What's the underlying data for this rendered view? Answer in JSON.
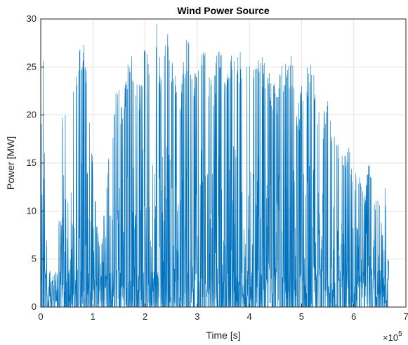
{
  "chart_data": {
    "type": "line",
    "title": "Wind Power Source",
    "xlabel": "Time [s]",
    "ylabel": "Power [MW]",
    "xlim": [
      0,
      700000
    ],
    "ylim": [
      0,
      30
    ],
    "x_ticks": [
      0,
      100000,
      200000,
      300000,
      400000,
      500000,
      600000,
      700000
    ],
    "x_tick_labels": [
      "0",
      "1",
      "2",
      "3",
      "4",
      "5",
      "6",
      "7"
    ],
    "x_multiplier": "×10",
    "x_multiplier_exponent": "5",
    "y_ticks": [
      0,
      5,
      10,
      15,
      20,
      25,
      30
    ],
    "y_tick_labels": [
      "0",
      "5",
      "10",
      "15",
      "20",
      "25",
      "30"
    ],
    "grid": true,
    "line_color": "#0072BD",
    "series": [
      {
        "x_start": 0,
        "x_end": 667000,
        "peaks": [
          {
            "x": 1000,
            "y": 19
          },
          {
            "x": 3000,
            "y": 26
          },
          {
            "x": 5000,
            "y": 28
          },
          {
            "x": 8000,
            "y": 16
          },
          {
            "x": 12000,
            "y": 5
          },
          {
            "x": 20000,
            "y": 3
          },
          {
            "x": 30000,
            "y": 2
          },
          {
            "x": 45000,
            "y": 26
          },
          {
            "x": 55000,
            "y": 6
          },
          {
            "x": 65000,
            "y": 29.5
          },
          {
            "x": 72000,
            "y": 25
          },
          {
            "x": 78000,
            "y": 29
          },
          {
            "x": 82000,
            "y": 28.7
          },
          {
            "x": 86000,
            "y": 28
          },
          {
            "x": 95000,
            "y": 19
          },
          {
            "x": 105000,
            "y": 11
          },
          {
            "x": 115000,
            "y": 5
          },
          {
            "x": 125000,
            "y": 13
          },
          {
            "x": 135000,
            "y": 18
          },
          {
            "x": 145000,
            "y": 23
          },
          {
            "x": 160000,
            "y": 22
          },
          {
            "x": 170000,
            "y": 29
          },
          {
            "x": 180000,
            "y": 24
          },
          {
            "x": 190000,
            "y": 24
          },
          {
            "x": 198000,
            "y": 29
          },
          {
            "x": 205000,
            "y": 27
          },
          {
            "x": 215000,
            "y": 29
          },
          {
            "x": 222000,
            "y": 30
          },
          {
            "x": 230000,
            "y": 25
          },
          {
            "x": 238000,
            "y": 29
          },
          {
            "x": 246000,
            "y": 29
          },
          {
            "x": 254000,
            "y": 26
          },
          {
            "x": 262000,
            "y": 23
          },
          {
            "x": 270000,
            "y": 24
          },
          {
            "x": 280000,
            "y": 29
          },
          {
            "x": 290000,
            "y": 25
          },
          {
            "x": 300000,
            "y": 25
          },
          {
            "x": 312000,
            "y": 29
          },
          {
            "x": 322000,
            "y": 25
          },
          {
            "x": 332000,
            "y": 24
          },
          {
            "x": 342000,
            "y": 29
          },
          {
            "x": 352000,
            "y": 24
          },
          {
            "x": 362000,
            "y": 25
          },
          {
            "x": 370000,
            "y": 29
          },
          {
            "x": 380000,
            "y": 26
          },
          {
            "x": 392000,
            "y": 29
          },
          {
            "x": 400000,
            "y": 29
          },
          {
            "x": 410000,
            "y": 25
          },
          {
            "x": 420000,
            "y": 27
          },
          {
            "x": 432000,
            "y": 26
          },
          {
            "x": 442000,
            "y": 24
          },
          {
            "x": 452000,
            "y": 23
          },
          {
            "x": 462000,
            "y": 27
          },
          {
            "x": 472000,
            "y": 25
          },
          {
            "x": 482000,
            "y": 27
          },
          {
            "x": 490000,
            "y": 20
          },
          {
            "x": 500000,
            "y": 23
          },
          {
            "x": 510000,
            "y": 25
          },
          {
            "x": 520000,
            "y": 26
          },
          {
            "x": 530000,
            "y": 21
          },
          {
            "x": 540000,
            "y": 20
          },
          {
            "x": 550000,
            "y": 22
          },
          {
            "x": 560000,
            "y": 18
          },
          {
            "x": 570000,
            "y": 18
          },
          {
            "x": 580000,
            "y": 16
          },
          {
            "x": 590000,
            "y": 17
          },
          {
            "x": 600000,
            "y": 14
          },
          {
            "x": 610000,
            "y": 14
          },
          {
            "x": 620000,
            "y": 12
          },
          {
            "x": 630000,
            "y": 16
          },
          {
            "x": 640000,
            "y": 11
          },
          {
            "x": 650000,
            "y": 12
          },
          {
            "x": 655000,
            "y": 17
          },
          {
            "x": 660000,
            "y": 13
          },
          {
            "x": 665000,
            "y": 5
          }
        ]
      }
    ]
  }
}
